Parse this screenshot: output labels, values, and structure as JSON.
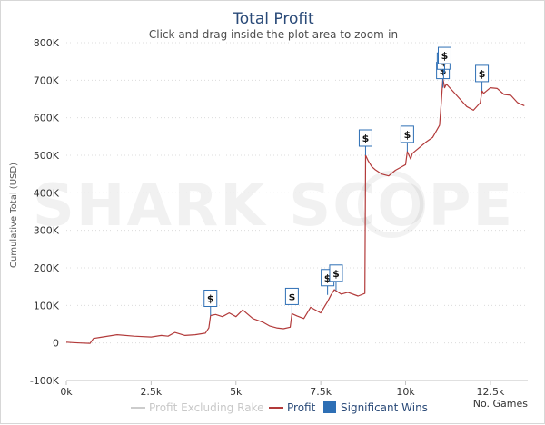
{
  "chart_data": {
    "type": "line",
    "title": "Total Profit",
    "subtitle": "Click and drag inside the plot area to zoom-in",
    "ylabel": "Cumulative Total (USD)",
    "xlabel": "No. Games",
    "xlim": [
      0,
      13600
    ],
    "ylim": [
      -100000,
      800000
    ],
    "x_ticks": [
      0,
      2500,
      5000,
      7500,
      10000,
      12500
    ],
    "x_tick_labels": [
      "0k",
      "2.5k",
      "5k",
      "7.5k",
      "10k",
      "12.5k"
    ],
    "y_ticks": [
      -100000,
      0,
      100000,
      200000,
      300000,
      400000,
      500000,
      600000,
      700000,
      800000
    ],
    "y_tick_labels": [
      "-100K",
      "0",
      "100K",
      "200K",
      "300K",
      "400K",
      "500K",
      "600K",
      "700K",
      "800K"
    ],
    "grid": true,
    "legend_position": "bottom",
    "watermark": "SHARK SCOPE",
    "series": [
      {
        "name": "Profit",
        "color": "#b23a3a",
        "x": [
          0,
          200,
          400,
          700,
          800,
          1000,
          1500,
          2000,
          2500,
          2800,
          3000,
          3200,
          3500,
          3800,
          4100,
          4200,
          4250,
          4400,
          4600,
          4800,
          5000,
          5200,
          5500,
          5800,
          6000,
          6200,
          6400,
          6600,
          6650,
          6800,
          7000,
          7200,
          7500,
          7700,
          7800,
          7900,
          8100,
          8300,
          8600,
          8800,
          8820,
          8900,
          9000,
          9100,
          9300,
          9500,
          9700,
          9900,
          10000,
          10050,
          10150,
          10200,
          10400,
          10600,
          10800,
          11000,
          11050,
          11100,
          11150,
          11200,
          11300,
          11500,
          11800,
          12000,
          12200,
          12250,
          12300,
          12500,
          12700,
          12900,
          13100,
          13300,
          13500
        ],
        "y": [
          2000,
          1000,
          0,
          -1000,
          12000,
          15000,
          22000,
          18000,
          16000,
          20000,
          18000,
          28000,
          20000,
          22000,
          26000,
          40000,
          73000,
          76000,
          70000,
          80000,
          70000,
          88000,
          65000,
          55000,
          45000,
          40000,
          38000,
          42000,
          78000,
          72000,
          65000,
          95000,
          80000,
          110000,
          128000,
          142000,
          130000,
          135000,
          125000,
          132000,
          500000,
          485000,
          470000,
          462000,
          450000,
          445000,
          460000,
          470000,
          475000,
          510000,
          490000,
          505000,
          520000,
          535000,
          548000,
          580000,
          640000,
          705000,
          680000,
          690000,
          680000,
          660000,
          630000,
          620000,
          640000,
          672000,
          665000,
          680000,
          678000,
          662000,
          660000,
          640000,
          632000
        ]
      },
      {
        "name": "Profit Excluding Rake",
        "color": "#cccccc",
        "hidden": true
      },
      {
        "name": "Significant Wins",
        "color": "#2e6fb5",
        "type": "flags",
        "marker": "$",
        "x": [
          4250,
          6650,
          7700,
          7950,
          8820,
          10050,
          11100,
          11120,
          11150,
          12250
        ],
        "y": [
          73000,
          78000,
          128000,
          140000,
          500000,
          510000,
          680000,
          705000,
          720000,
          672000
        ]
      }
    ]
  }
}
